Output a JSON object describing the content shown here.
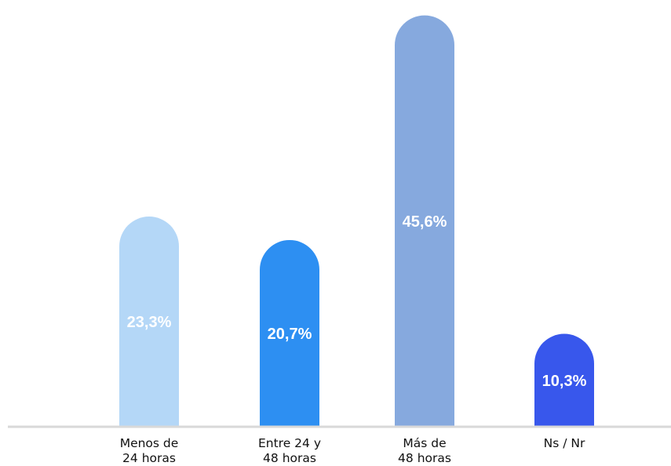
{
  "chart_data": {
    "type": "bar",
    "categories": [
      [
        "Menos de",
        "24 horas"
      ],
      [
        "Entre 24 y",
        "48 horas"
      ],
      [
        "Más de",
        "48 horas"
      ],
      [
        "Ns / Nr"
      ]
    ],
    "values": [
      23.3,
      20.7,
      45.6,
      10.3
    ],
    "value_labels": [
      "23,3%",
      "20,7%",
      "45,6%",
      "10,3%"
    ],
    "bar_colors": [
      "#b4d7f7",
      "#2d8ff2",
      "#86a9de",
      "#3857ec"
    ],
    "ylim": [
      0,
      46
    ],
    "grid": false,
    "legend": "none",
    "title": "",
    "xlabel": "",
    "ylabel": ""
  }
}
